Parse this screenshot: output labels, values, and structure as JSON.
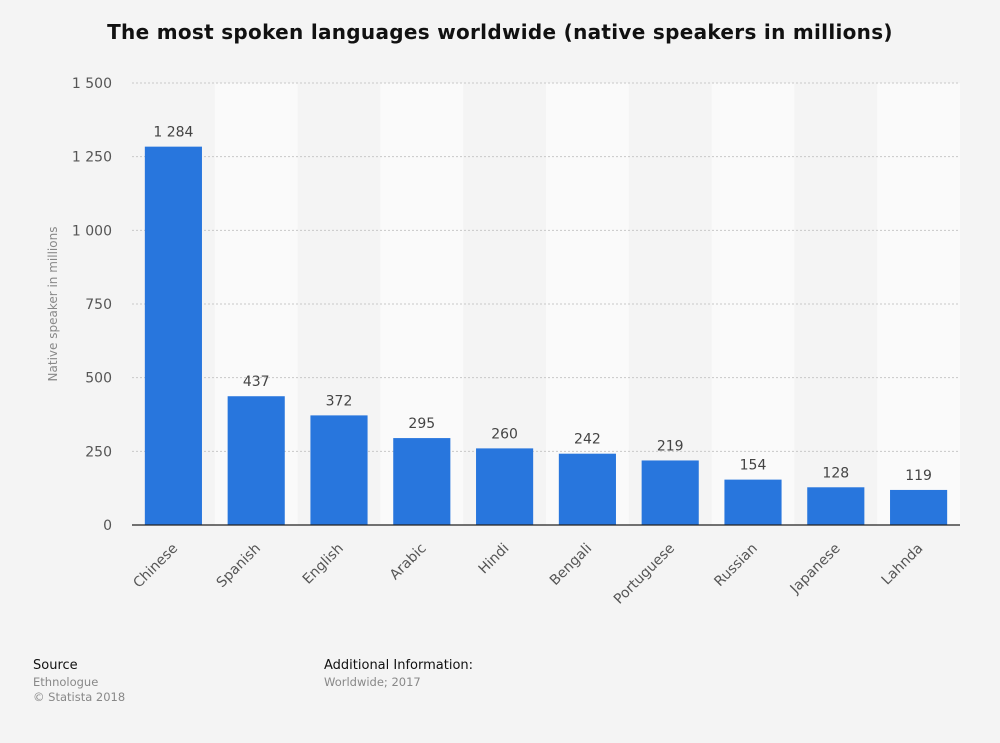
{
  "chart_data": {
    "type": "bar",
    "title": "The most spoken languages worldwide (native speakers in millions)",
    "xlabel": "",
    "ylabel": "Native speaker in millions",
    "categories": [
      "Chinese",
      "Spanish",
      "English",
      "Arabic",
      "Hindi",
      "Bengali",
      "Portuguese",
      "Russian",
      "Japanese",
      "Lahnda"
    ],
    "values": [
      1284,
      437,
      372,
      295,
      260,
      242,
      219,
      154,
      128,
      119
    ],
    "value_labels": [
      "1 284",
      "437",
      "372",
      "295",
      "260",
      "242",
      "219",
      "154",
      "128",
      "119"
    ],
    "ylim": [
      0,
      1500
    ],
    "yticks": [
      0,
      250,
      500,
      750,
      1000,
      1250,
      1500
    ],
    "ytick_labels": [
      "0",
      "250",
      "500",
      "750",
      "1 000",
      "1 250",
      "1 500"
    ],
    "grid": true,
    "bar_color": "#2876dd",
    "band_color": "#fafafa"
  },
  "footer": {
    "source_heading": "Source",
    "source_name": "Ethnologue",
    "copyright": "© Statista 2018",
    "info_heading": "Additional Information:",
    "info_text": "Worldwide; 2017"
  }
}
